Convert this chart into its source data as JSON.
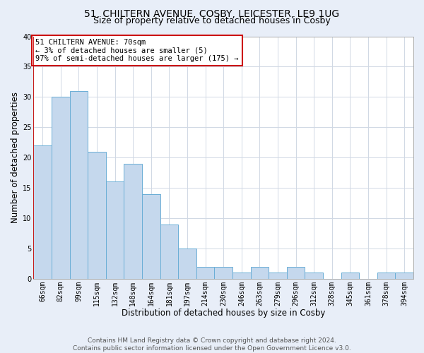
{
  "title": "51, CHILTERN AVENUE, COSBY, LEICESTER, LE9 1UG",
  "subtitle": "Size of property relative to detached houses in Cosby",
  "xlabel": "Distribution of detached houses by size in Cosby",
  "ylabel": "Number of detached properties",
  "bin_labels": [
    "66sqm",
    "82sqm",
    "99sqm",
    "115sqm",
    "132sqm",
    "148sqm",
    "164sqm",
    "181sqm",
    "197sqm",
    "214sqm",
    "230sqm",
    "246sqm",
    "263sqm",
    "279sqm",
    "296sqm",
    "312sqm",
    "328sqm",
    "345sqm",
    "361sqm",
    "378sqm",
    "394sqm"
  ],
  "bar_heights": [
    22,
    30,
    31,
    21,
    16,
    19,
    14,
    9,
    5,
    2,
    2,
    1,
    2,
    1,
    2,
    1,
    0,
    1,
    0,
    1,
    1
  ],
  "bar_color": "#c5d8ed",
  "bar_edge_color": "#6aaed6",
  "annotation_box_text": "51 CHILTERN AVENUE: 70sqm\n← 3% of detached houses are smaller (5)\n97% of semi-detached houses are larger (175) →",
  "annotation_box_edge_color": "#cc0000",
  "annotation_box_face_color": "#ffffff",
  "marker_color": "#cc0000",
  "ylim": [
    0,
    40
  ],
  "yticks": [
    0,
    5,
    10,
    15,
    20,
    25,
    30,
    35,
    40
  ],
  "grid_color": "#d0d8e4",
  "background_color": "#e8eef8",
  "plot_bg_color": "#ffffff",
  "footer_line1": "Contains HM Land Registry data © Crown copyright and database right 2024.",
  "footer_line2": "Contains public sector information licensed under the Open Government Licence v3.0.",
  "title_fontsize": 10,
  "subtitle_fontsize": 9,
  "axis_label_fontsize": 8.5,
  "tick_fontsize": 7,
  "annotation_fontsize": 7.5,
  "footer_fontsize": 6.5
}
